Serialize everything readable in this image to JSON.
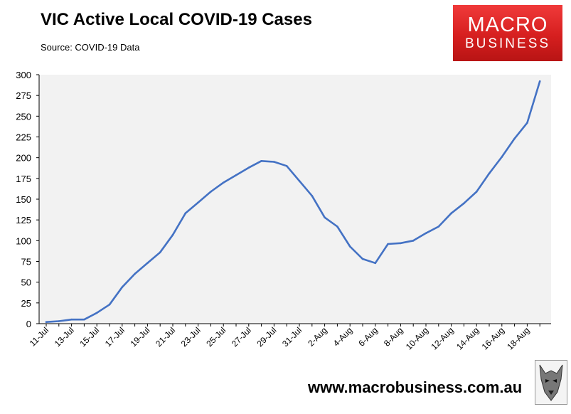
{
  "title": "VIC Active Local COVID-19 Cases",
  "subtitle": "Source: COVID-19 Data",
  "logo": {
    "line1": "MACRO",
    "line2": "BUSINESS"
  },
  "url": "www.macrobusiness.com.au",
  "colors": {
    "line": "#4472c4",
    "plot_bg": "#f2f2f2",
    "logo_red": "#e32b2b"
  },
  "chart_data": {
    "type": "line",
    "title": "VIC Active Local COVID-19 Cases",
    "xlabel": "",
    "ylabel": "",
    "ylim": [
      0,
      300
    ],
    "yticks": [
      0,
      25,
      50,
      75,
      100,
      125,
      150,
      175,
      200,
      225,
      250,
      275,
      300
    ],
    "grid": false,
    "xtick_labels": [
      "11-Jul",
      "13-Jul",
      "15-Jul",
      "17-Jul",
      "19-Jul",
      "21-Jul",
      "23-Jul",
      "25-Jul",
      "27-Jul",
      "29-Jul",
      "31-Jul",
      "2-Aug",
      "4-Aug",
      "6-Aug",
      "8-Aug",
      "10-Aug",
      "12-Aug",
      "14-Aug",
      "16-Aug",
      "18-Aug"
    ],
    "x": [
      "11-Jul",
      "12-Jul",
      "13-Jul",
      "14-Jul",
      "15-Jul",
      "16-Jul",
      "17-Jul",
      "18-Jul",
      "19-Jul",
      "20-Jul",
      "21-Jul",
      "22-Jul",
      "23-Jul",
      "24-Jul",
      "25-Jul",
      "26-Jul",
      "27-Jul",
      "28-Jul",
      "29-Jul",
      "30-Jul",
      "31-Jul",
      "1-Aug",
      "2-Aug",
      "3-Aug",
      "4-Aug",
      "5-Aug",
      "6-Aug",
      "7-Aug",
      "8-Aug",
      "9-Aug",
      "10-Aug",
      "11-Aug",
      "12-Aug",
      "13-Aug",
      "14-Aug",
      "15-Aug",
      "16-Aug",
      "17-Aug",
      "18-Aug",
      "19-Aug"
    ],
    "series": [
      {
        "values": [
          2,
          3,
          5,
          5,
          13,
          23,
          44,
          60,
          73,
          86,
          107,
          133,
          146,
          159,
          170,
          179,
          188,
          196,
          195,
          190,
          172,
          154,
          128,
          117,
          93,
          78,
          73,
          96,
          97,
          100,
          109,
          117,
          133,
          145,
          159,
          181,
          201,
          223,
          242,
          292
        ]
      }
    ]
  }
}
